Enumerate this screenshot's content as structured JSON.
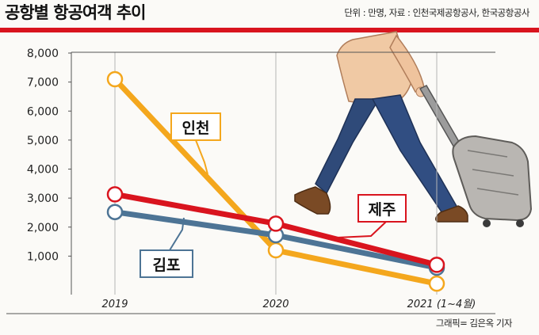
{
  "header": {
    "title": "공항별 항공여객 추이",
    "source": "단위 : 만명, 자료 : 인천국제공항공사, 한국공항공사"
  },
  "footer": {
    "credit": "그래픽= 김은옥 기자"
  },
  "colors": {
    "incheon": "#f4a71d",
    "jeju": "#d9141e",
    "gimpo": "#4d7495",
    "accent_rule": "#d9141e",
    "marker_fill": "#ffffff"
  },
  "chart_data": {
    "type": "line",
    "categories": [
      "2019",
      "2020",
      "2021 (1~4월)"
    ],
    "ylim": [
      0,
      8000
    ],
    "yticks": [
      "8,000",
      "7,000",
      "6,000",
      "5,000",
      "4,000",
      "3,000",
      "2,000",
      "1,000"
    ],
    "grid": true,
    "series": [
      {
        "name": "인천",
        "values": [
          7100,
          1200,
          50
        ],
        "color": "#f4a71d"
      },
      {
        "name": "제주",
        "values": [
          3130,
          2120,
          700
        ],
        "color": "#d9141e"
      },
      {
        "name": "김포",
        "values": [
          2520,
          1720,
          600
        ],
        "color": "#4d7495"
      }
    ]
  },
  "illustration": {
    "subject": "traveler-walking-with-suitcase"
  }
}
